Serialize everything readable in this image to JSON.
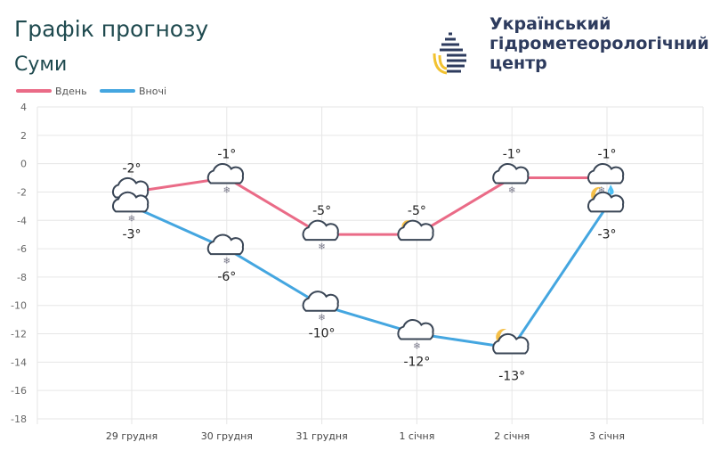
{
  "header": {
    "title": "Графік прогнозу",
    "city": "Суми",
    "org_name": [
      "Український",
      "гідрометеорологічний",
      "центр"
    ]
  },
  "colors": {
    "day": "#ea6b87",
    "night": "#44a6e0",
    "grid": "#e6e6e6",
    "text": "#222222"
  },
  "chart_data": {
    "type": "line",
    "categories": [
      "29 грудня",
      "30 грудня",
      "31 грудня",
      "1 січня",
      "2 січня",
      "3 січня"
    ],
    "ylim": [
      -18,
      4
    ],
    "yticks": [
      4,
      2,
      0,
      -2,
      -4,
      -6,
      -8,
      -10,
      -12,
      -14,
      -16,
      -18
    ],
    "grid": true,
    "legend": "top-left",
    "series": [
      {
        "name": "Вдень",
        "values": [
          -2,
          -1,
          -5,
          -5,
          -1,
          -1
        ],
        "labels": [
          "-2°",
          "-1°",
          "-5°",
          "-5°",
          "-1°",
          "-1°"
        ],
        "icons": [
          "cloud-snow-icon",
          "cloud-snow-icon",
          "cloud-snow-icon",
          "sun-cloud-icon",
          "cloud-snow-icon",
          "cloud-snow-rain-icon"
        ]
      },
      {
        "name": "Вночі",
        "values": [
          -3,
          -6,
          -10,
          -12,
          -13,
          -3
        ],
        "labels": [
          "-3°",
          "-6°",
          "-10°",
          "-12°",
          "-13°",
          "-3°"
        ],
        "icons": [
          "cloud-snow-icon",
          "cloud-snow-icon",
          "cloud-snow-icon",
          "cloud-snow-icon",
          "moon-cloud-icon",
          "moon-cloud-icon"
        ]
      }
    ]
  }
}
